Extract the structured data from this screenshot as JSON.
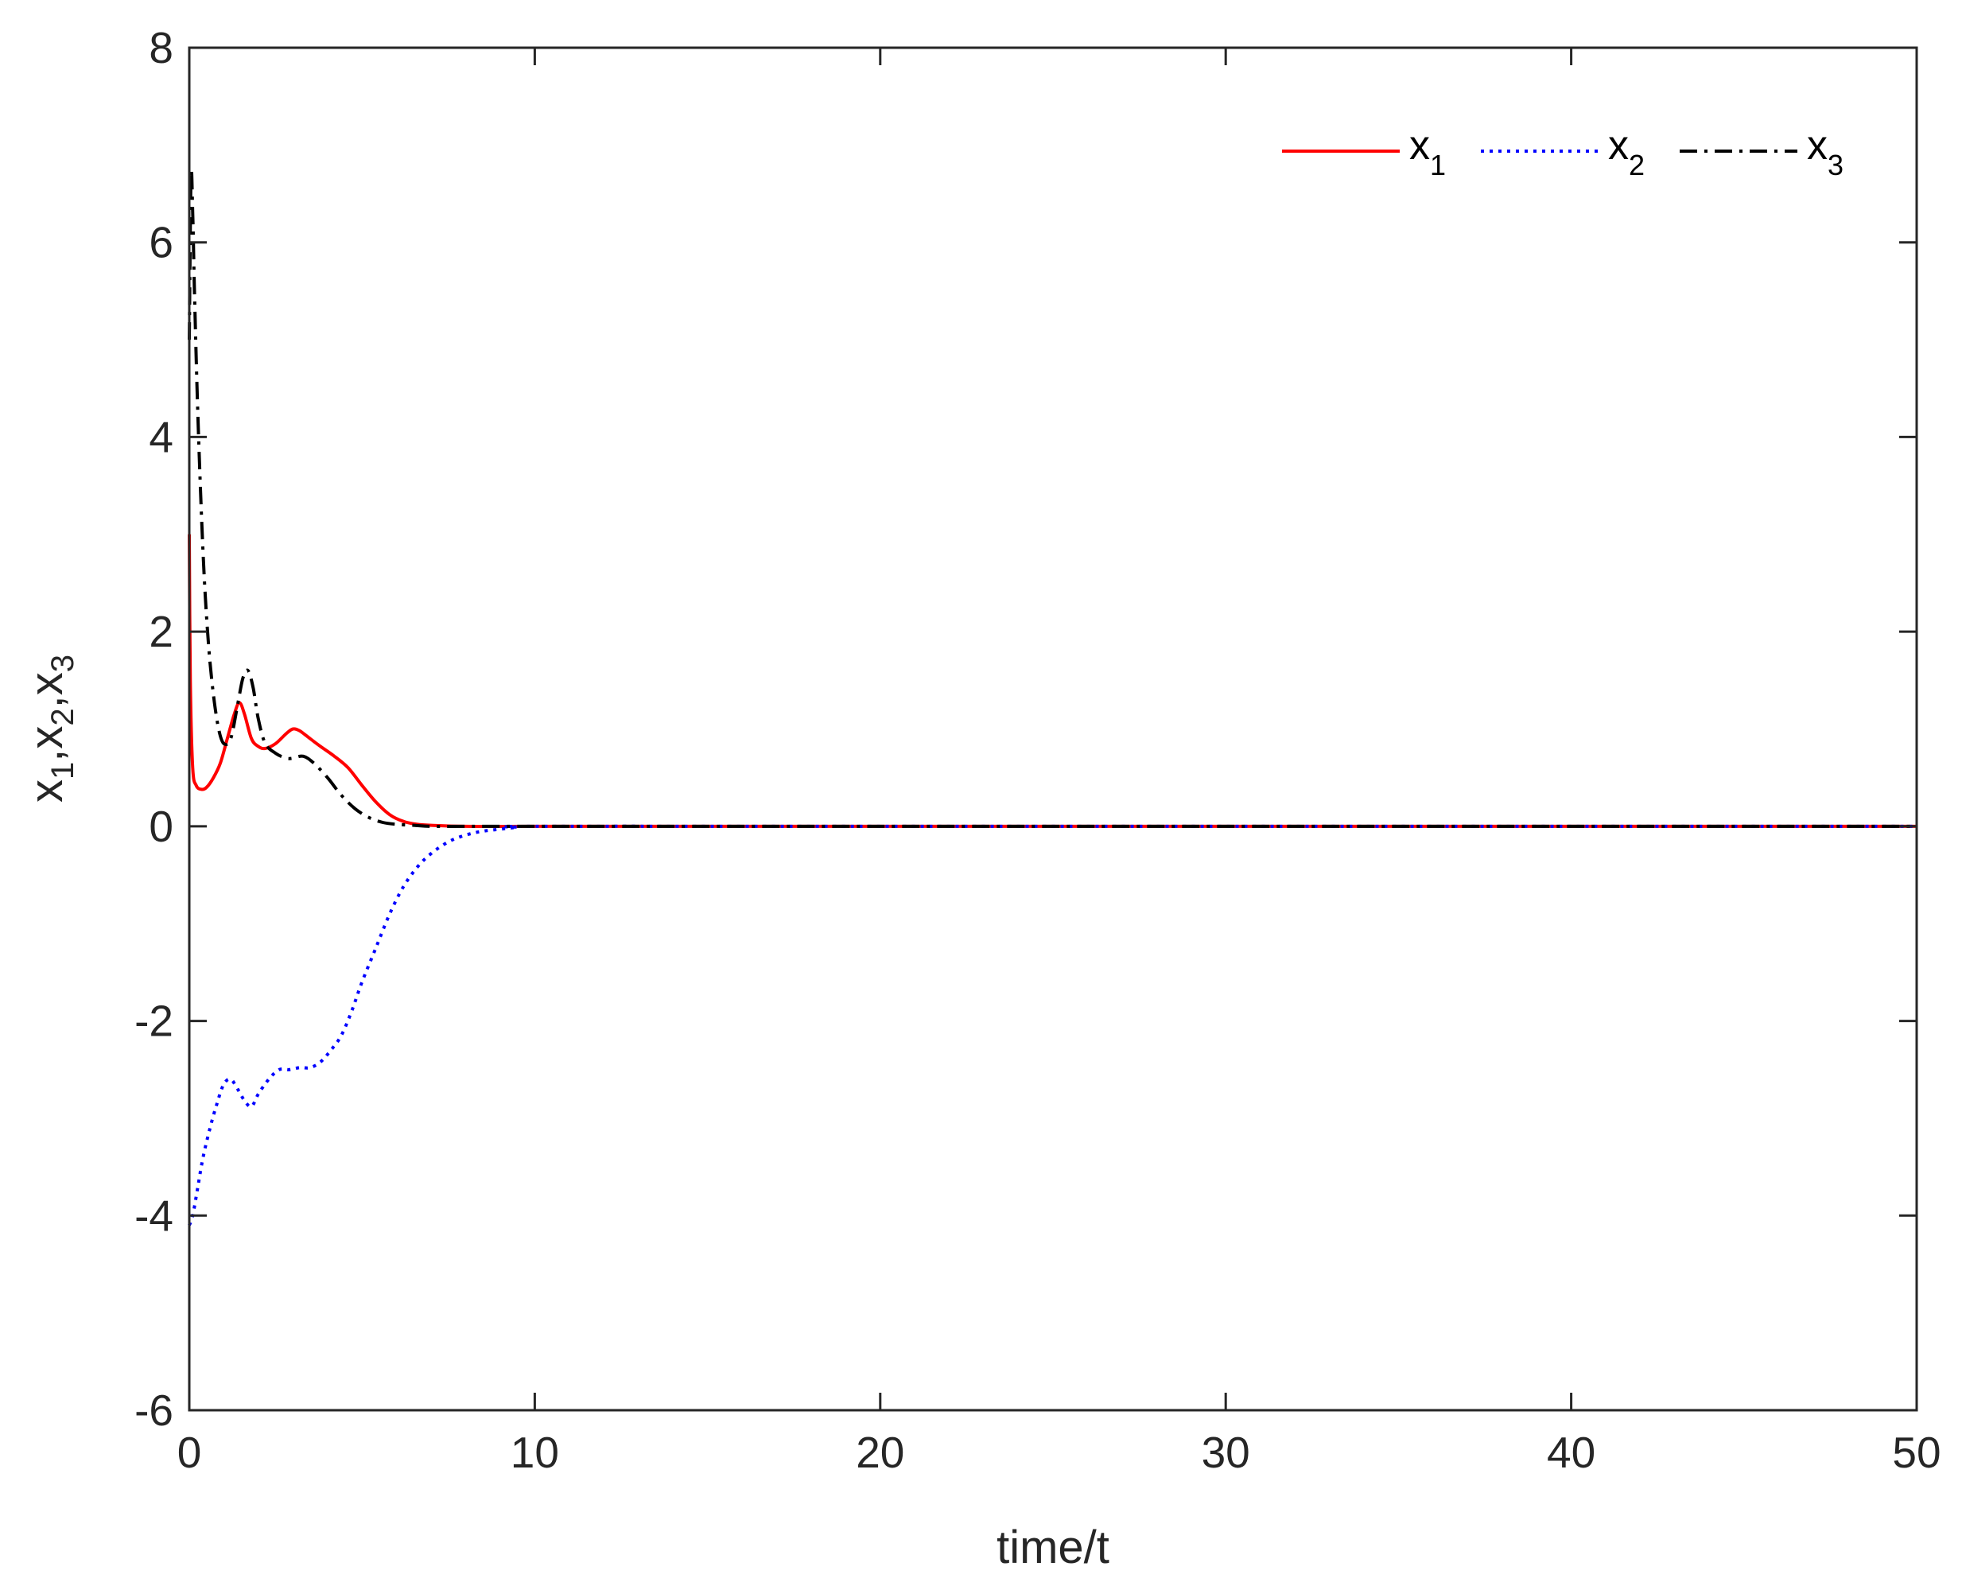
{
  "chart_data": {
    "type": "line",
    "xlabel": "time/t",
    "ylabel": {
      "base": "x",
      "subs": [
        "1",
        "2",
        "3"
      ]
    },
    "xlim": [
      0,
      50
    ],
    "ylim": [
      -6,
      8
    ],
    "xticks": [
      0,
      10,
      20,
      30,
      40,
      50
    ],
    "yticks": [
      -6,
      -4,
      -2,
      0,
      2,
      4,
      6,
      8
    ],
    "xtick_labels": [
      "0",
      "10",
      "20",
      "30",
      "40",
      "50"
    ],
    "ytick_labels": [
      "-6",
      "-4",
      "-2",
      "0",
      "2",
      "4",
      "6",
      "8"
    ],
    "grid": false,
    "legend_position": "top-right",
    "series": [
      {
        "name": "x1",
        "name_base": "x",
        "name_sub": "1",
        "color": "#ff0000",
        "style": "solid",
        "x": [
          0,
          0.03,
          0.1,
          0.2,
          0.35,
          0.5,
          0.7,
          0.9,
          1.1,
          1.3,
          1.45,
          1.6,
          1.8,
          2.0,
          2.2,
          2.5,
          2.8,
          3.0,
          3.2,
          3.5,
          3.8,
          4.2,
          4.6,
          5.0,
          5.4,
          5.8,
          6.2,
          6.6,
          7.0,
          8.0,
          10,
          20,
          30,
          40,
          50
        ],
        "y": [
          3.0,
          1.5,
          0.6,
          0.42,
          0.38,
          0.4,
          0.5,
          0.65,
          0.9,
          1.15,
          1.27,
          1.15,
          0.9,
          0.82,
          0.8,
          0.85,
          0.95,
          1.0,
          0.98,
          0.9,
          0.82,
          0.72,
          0.6,
          0.42,
          0.25,
          0.12,
          0.05,
          0.02,
          0.01,
          0,
          0,
          0,
          0,
          0,
          0
        ]
      },
      {
        "name": "x2",
        "name_base": "x",
        "name_sub": "2",
        "color": "#0000ff",
        "style": "dotted",
        "x": [
          0,
          0.1,
          0.25,
          0.4,
          0.6,
          0.8,
          1.0,
          1.2,
          1.4,
          1.6,
          1.8,
          2.0,
          2.3,
          2.6,
          2.9,
          3.2,
          3.5,
          3.8,
          4.1,
          4.4,
          4.7,
          5.0,
          5.4,
          5.8,
          6.2,
          6.6,
          7.0,
          7.5,
          8.0,
          8.5,
          9.0,
          9.5,
          10,
          20,
          30,
          40,
          50
        ],
        "y": [
          -4.1,
          -4.0,
          -3.7,
          -3.4,
          -3.1,
          -2.85,
          -2.65,
          -2.6,
          -2.7,
          -2.82,
          -2.88,
          -2.75,
          -2.6,
          -2.5,
          -2.5,
          -2.48,
          -2.48,
          -2.42,
          -2.3,
          -2.15,
          -1.9,
          -1.6,
          -1.25,
          -0.9,
          -0.62,
          -0.42,
          -0.28,
          -0.16,
          -0.09,
          -0.05,
          -0.03,
          -0.01,
          0,
          0,
          0,
          0,
          0
        ]
      },
      {
        "name": "x3",
        "name_base": "x",
        "name_sub": "3",
        "color": "#000000",
        "style": "dashdot",
        "x": [
          0,
          0.05,
          0.1,
          0.15,
          0.25,
          0.4,
          0.55,
          0.7,
          0.85,
          1.0,
          1.2,
          1.4,
          1.55,
          1.7,
          1.85,
          2.0,
          2.2,
          2.5,
          2.8,
          3.0,
          3.3,
          3.6,
          4.0,
          4.4,
          4.8,
          5.2,
          5.6,
          6.0,
          6.5,
          7.0,
          8.0,
          10,
          20,
          30,
          40,
          50
        ],
        "y": [
          5.0,
          6.7,
          6.3,
          5.5,
          4.2,
          2.8,
          1.9,
          1.35,
          1.0,
          0.85,
          0.9,
          1.25,
          1.52,
          1.6,
          1.42,
          1.1,
          0.85,
          0.75,
          0.7,
          0.7,
          0.72,
          0.65,
          0.5,
          0.32,
          0.18,
          0.09,
          0.04,
          0.02,
          0.01,
          0,
          0,
          0,
          0,
          0,
          0,
          0
        ]
      }
    ]
  }
}
